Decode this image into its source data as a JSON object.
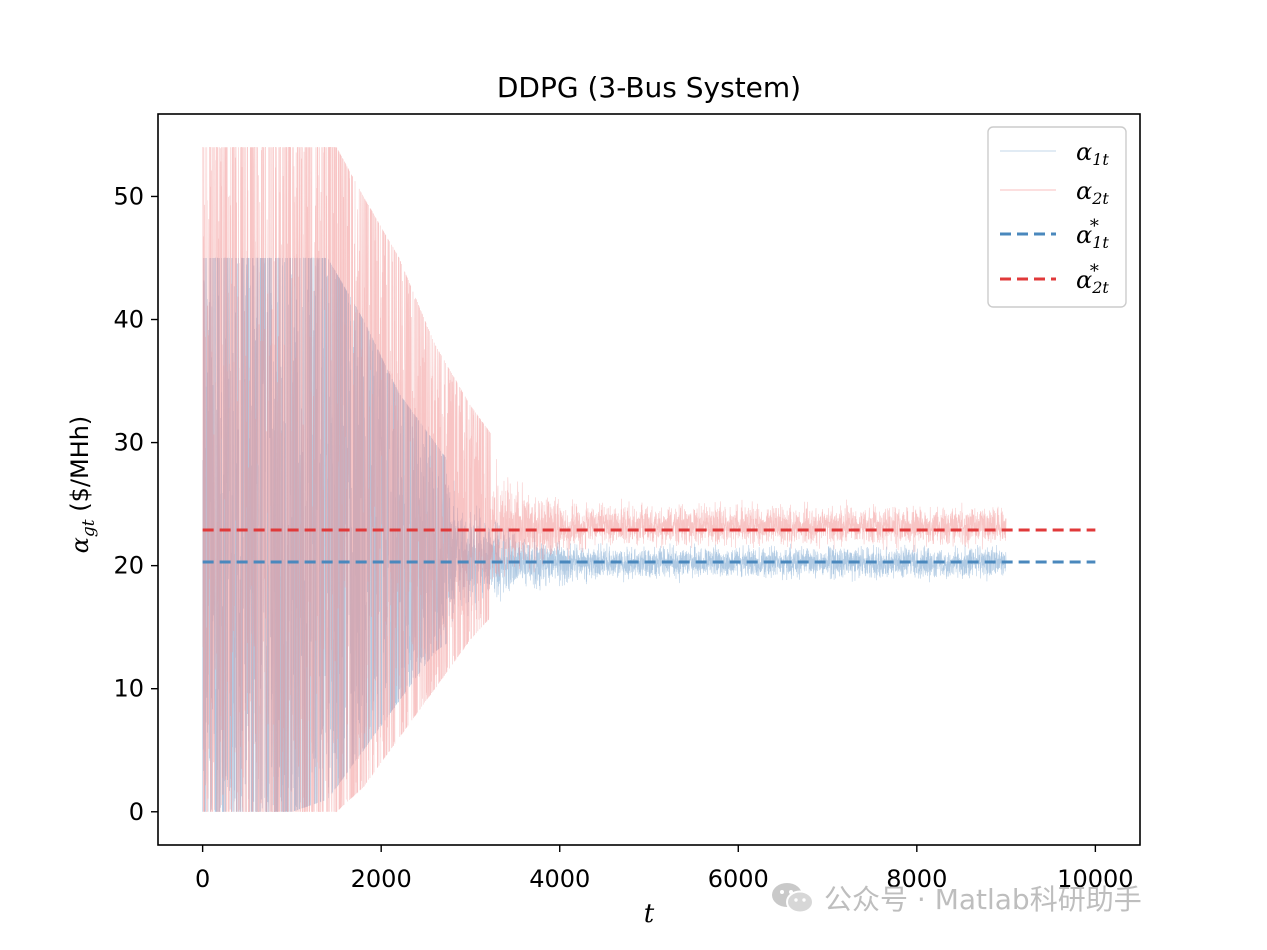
{
  "chart_data": {
    "type": "line",
    "title": "DDPG (3-Bus System)",
    "xlabel": "t",
    "ylabel": "α_gt ($/MHh)",
    "xlim": [
      -500,
      10500
    ],
    "ylim": [
      -2.7,
      56.7
    ],
    "xticks": [
      0,
      2000,
      4000,
      6000,
      8000,
      10000
    ],
    "yticks": [
      0,
      10,
      20,
      30,
      40,
      50
    ],
    "grid": false,
    "legend_position": "top-right",
    "legend": [
      "α1t",
      "α2t",
      "α1t*",
      "α2t*"
    ],
    "series": [
      {
        "name": "α1t",
        "style": "noisy",
        "color": "#7ba7d1",
        "x_end": 9000,
        "envelope": {
          "t": [
            0,
            500,
            1000,
            1400,
            1800,
            2200,
            2600,
            3000,
            3500,
            4000,
            4500,
            9000
          ],
          "lower": [
            0,
            0,
            0,
            1,
            5,
            9,
            13,
            15,
            17,
            18,
            18.5,
            18.5
          ],
          "upper": [
            45,
            45,
            45,
            45,
            40,
            34,
            30,
            26,
            23.5,
            22.5,
            22,
            22
          ],
          "center": 20.3
        }
      },
      {
        "name": "α2t",
        "style": "noisy",
        "color": "#f28a8a",
        "x_end": 9000,
        "envelope": {
          "t": [
            0,
            500,
            1000,
            1500,
            1800,
            2200,
            2600,
            3000,
            3500,
            4000,
            4500,
            9000
          ],
          "lower": [
            0,
            0,
            0,
            0,
            2,
            6,
            10,
            14,
            18,
            20,
            21,
            21
          ],
          "upper": [
            54,
            54,
            54,
            54,
            50,
            45,
            38,
            33,
            28,
            26,
            25.5,
            25.5
          ],
          "center": 22.9
        }
      },
      {
        "name": "α1t*",
        "style": "dashed",
        "color": "#4a88bd",
        "x": [
          0,
          10000
        ],
        "y": [
          20.3,
          20.3
        ]
      },
      {
        "name": "α2t*",
        "style": "dashed",
        "color": "#e0393a",
        "x": [
          0,
          10000
        ],
        "y": [
          22.9,
          22.9
        ]
      }
    ]
  },
  "watermark": {
    "text": "公众号 · Matlab科研助手",
    "icon": "wechat-icon"
  }
}
